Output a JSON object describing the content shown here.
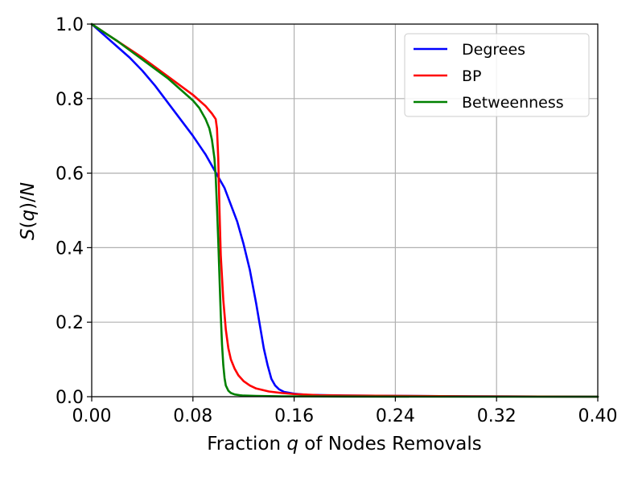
{
  "chart_data": {
    "type": "line",
    "title": "",
    "xlabel": {
      "prefix": "Fraction ",
      "var": "q",
      "suffix": " of Nodes Removals"
    },
    "ylabel": {
      "pre": "S(",
      "var1": "q",
      "mid": ")/",
      "var2": "N"
    },
    "xlim": [
      0,
      0.4
    ],
    "ylim": [
      0,
      1.0
    ],
    "xticks": [
      "0.00",
      "0.08",
      "0.16",
      "0.24",
      "0.32",
      "0.40"
    ],
    "yticks": [
      "0.0",
      "0.2",
      "0.4",
      "0.6",
      "0.8",
      "1.0"
    ],
    "grid": true,
    "legend_position": "top-right",
    "series": [
      {
        "name": "Degrees",
        "color": "#0000ff",
        "x": [
          0,
          0.01,
          0.02,
          0.03,
          0.04,
          0.05,
          0.06,
          0.07,
          0.08,
          0.085,
          0.09,
          0.095,
          0.1,
          0.105,
          0.11,
          0.115,
          0.12,
          0.125,
          0.13,
          0.133,
          0.136,
          0.139,
          0.142,
          0.145,
          0.148,
          0.152,
          0.16,
          0.17,
          0.2,
          0.25,
          0.3,
          0.4
        ],
        "y": [
          1.0,
          0.97,
          0.94,
          0.91,
          0.875,
          0.835,
          0.79,
          0.745,
          0.7,
          0.675,
          0.65,
          0.62,
          0.59,
          0.56,
          0.515,
          0.47,
          0.41,
          0.34,
          0.25,
          0.19,
          0.13,
          0.085,
          0.048,
          0.03,
          0.02,
          0.013,
          0.008,
          0.005,
          0.003,
          0.002,
          0.001,
          0.0
        ]
      },
      {
        "name": "BP",
        "color": "#ff0000",
        "x": [
          0,
          0.02,
          0.04,
          0.06,
          0.08,
          0.09,
          0.095,
          0.098,
          0.099,
          0.1,
          0.101,
          0.102,
          0.104,
          0.106,
          0.108,
          0.11,
          0.113,
          0.116,
          0.12,
          0.125,
          0.13,
          0.14,
          0.15,
          0.16,
          0.18,
          0.2,
          0.25,
          0.3,
          0.4
        ],
        "y": [
          1.0,
          0.955,
          0.91,
          0.86,
          0.81,
          0.78,
          0.76,
          0.745,
          0.72,
          0.64,
          0.5,
          0.38,
          0.26,
          0.18,
          0.13,
          0.1,
          0.075,
          0.057,
          0.042,
          0.03,
          0.022,
          0.014,
          0.01,
          0.007,
          0.004,
          0.003,
          0.002,
          0.001,
          0.0
        ]
      },
      {
        "name": "Betweenness",
        "color": "#008000",
        "x": [
          0,
          0.02,
          0.04,
          0.06,
          0.08,
          0.085,
          0.09,
          0.093,
          0.095,
          0.097,
          0.098,
          0.099,
          0.1,
          0.101,
          0.102,
          0.103,
          0.104,
          0.105,
          0.106,
          0.108,
          0.11,
          0.113,
          0.117,
          0.12,
          0.13,
          0.15,
          0.2,
          0.3,
          0.4
        ],
        "y": [
          1.0,
          0.955,
          0.905,
          0.855,
          0.795,
          0.775,
          0.745,
          0.72,
          0.69,
          0.64,
          0.59,
          0.51,
          0.42,
          0.32,
          0.22,
          0.14,
          0.085,
          0.05,
          0.03,
          0.016,
          0.01,
          0.006,
          0.004,
          0.003,
          0.002,
          0.001,
          0.0005,
          0.0,
          0.0
        ]
      }
    ]
  }
}
